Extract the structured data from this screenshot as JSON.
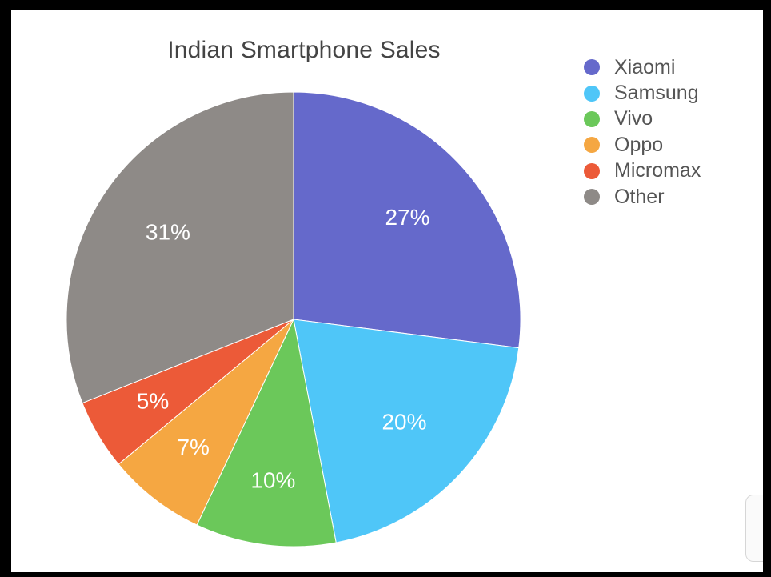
{
  "chart_data": {
    "type": "pie",
    "title": "Indian Smartphone Sales",
    "legend_position": "top-right",
    "slices": [
      {
        "label": "Xiaomi",
        "value": 27,
        "value_label": "27%",
        "color": "#6569cb"
      },
      {
        "label": "Samsung",
        "value": 20,
        "value_label": "20%",
        "color": "#4fc6f8"
      },
      {
        "label": "Vivo",
        "value": 10,
        "value_label": "10%",
        "color": "#6bc85a"
      },
      {
        "label": "Oppo",
        "value": 7,
        "value_label": "7%",
        "color": "#f5a742"
      },
      {
        "label": "Micromax",
        "value": 5,
        "value_label": "5%",
        "color": "#ec5a38"
      },
      {
        "label": "Other",
        "value": 31,
        "value_label": "31%",
        "color": "#8e8a87"
      }
    ]
  }
}
